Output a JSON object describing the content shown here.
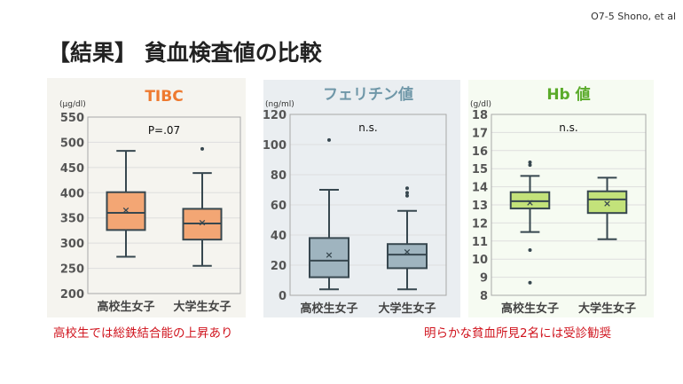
{
  "header": {
    "reference": "O7-5 Shono, et al",
    "title": "【結果】 貧血検査値の比較"
  },
  "notes": [
    "高校生では総鉄結合能の上昇あり",
    "明らかな貧血所見2名には受診勧奨"
  ],
  "chart_data": [
    {
      "type": "boxplot",
      "title": "TIBC",
      "title_color": "#ee7a30",
      "box_color": "#f3a674",
      "unit": "(μg/dl)",
      "annotation": "P=.07",
      "ylim": [
        200,
        550
      ],
      "yticks": [
        200,
        250,
        300,
        350,
        400,
        450,
        500,
        550
      ],
      "categories": [
        "高校生女子",
        "大学生女子"
      ],
      "series": [
        {
          "min": 273,
          "q1": 326,
          "median": 360,
          "q3": 401,
          "max": 483,
          "mean": 366,
          "outliers": []
        },
        {
          "min": 255,
          "q1": 307,
          "median": 339,
          "q3": 368,
          "max": 439,
          "mean": 342,
          "outliers": [
            487
          ]
        }
      ]
    },
    {
      "type": "boxplot",
      "title": "フェリチン値",
      "title_color": "#6f97a8",
      "box_color": "#9fb4bf",
      "unit": "(ng/ml)",
      "annotation": "n.s.",
      "ylim": [
        0,
        120
      ],
      "yticks": [
        0,
        20,
        40,
        60,
        80,
        100,
        120
      ],
      "categories": [
        "高校生女子",
        "大学生女子"
      ],
      "series": [
        {
          "min": 4,
          "q1": 12,
          "median": 23,
          "q3": 38,
          "max": 70,
          "mean": 27,
          "outliers": [
            103
          ]
        },
        {
          "min": 4,
          "q1": 18,
          "median": 27,
          "q3": 34,
          "max": 56,
          "mean": 29,
          "outliers": [
            66,
            68,
            71
          ]
        }
      ]
    },
    {
      "type": "boxplot",
      "title": "Hb 値",
      "title_color": "#5aab2a",
      "box_color": "#c3e27a",
      "unit": "(g/dl)",
      "annotation": "n.s.",
      "ylim": [
        8,
        18
      ],
      "yticks": [
        8,
        9,
        10,
        11,
        12,
        13,
        14,
        15,
        16,
        17,
        18
      ],
      "categories": [
        "高校生女子",
        "大学生女子"
      ],
      "series": [
        {
          "min": 11.5,
          "q1": 12.8,
          "median": 13.2,
          "q3": 13.7,
          "max": 14.6,
          "mean": 13.15,
          "outliers": [
            15.2,
            15.35,
            10.5,
            8.7
          ]
        },
        {
          "min": 11.1,
          "q1": 12.55,
          "median": 13.3,
          "q3": 13.75,
          "max": 14.5,
          "mean": 13.1,
          "outliers": []
        }
      ]
    }
  ]
}
